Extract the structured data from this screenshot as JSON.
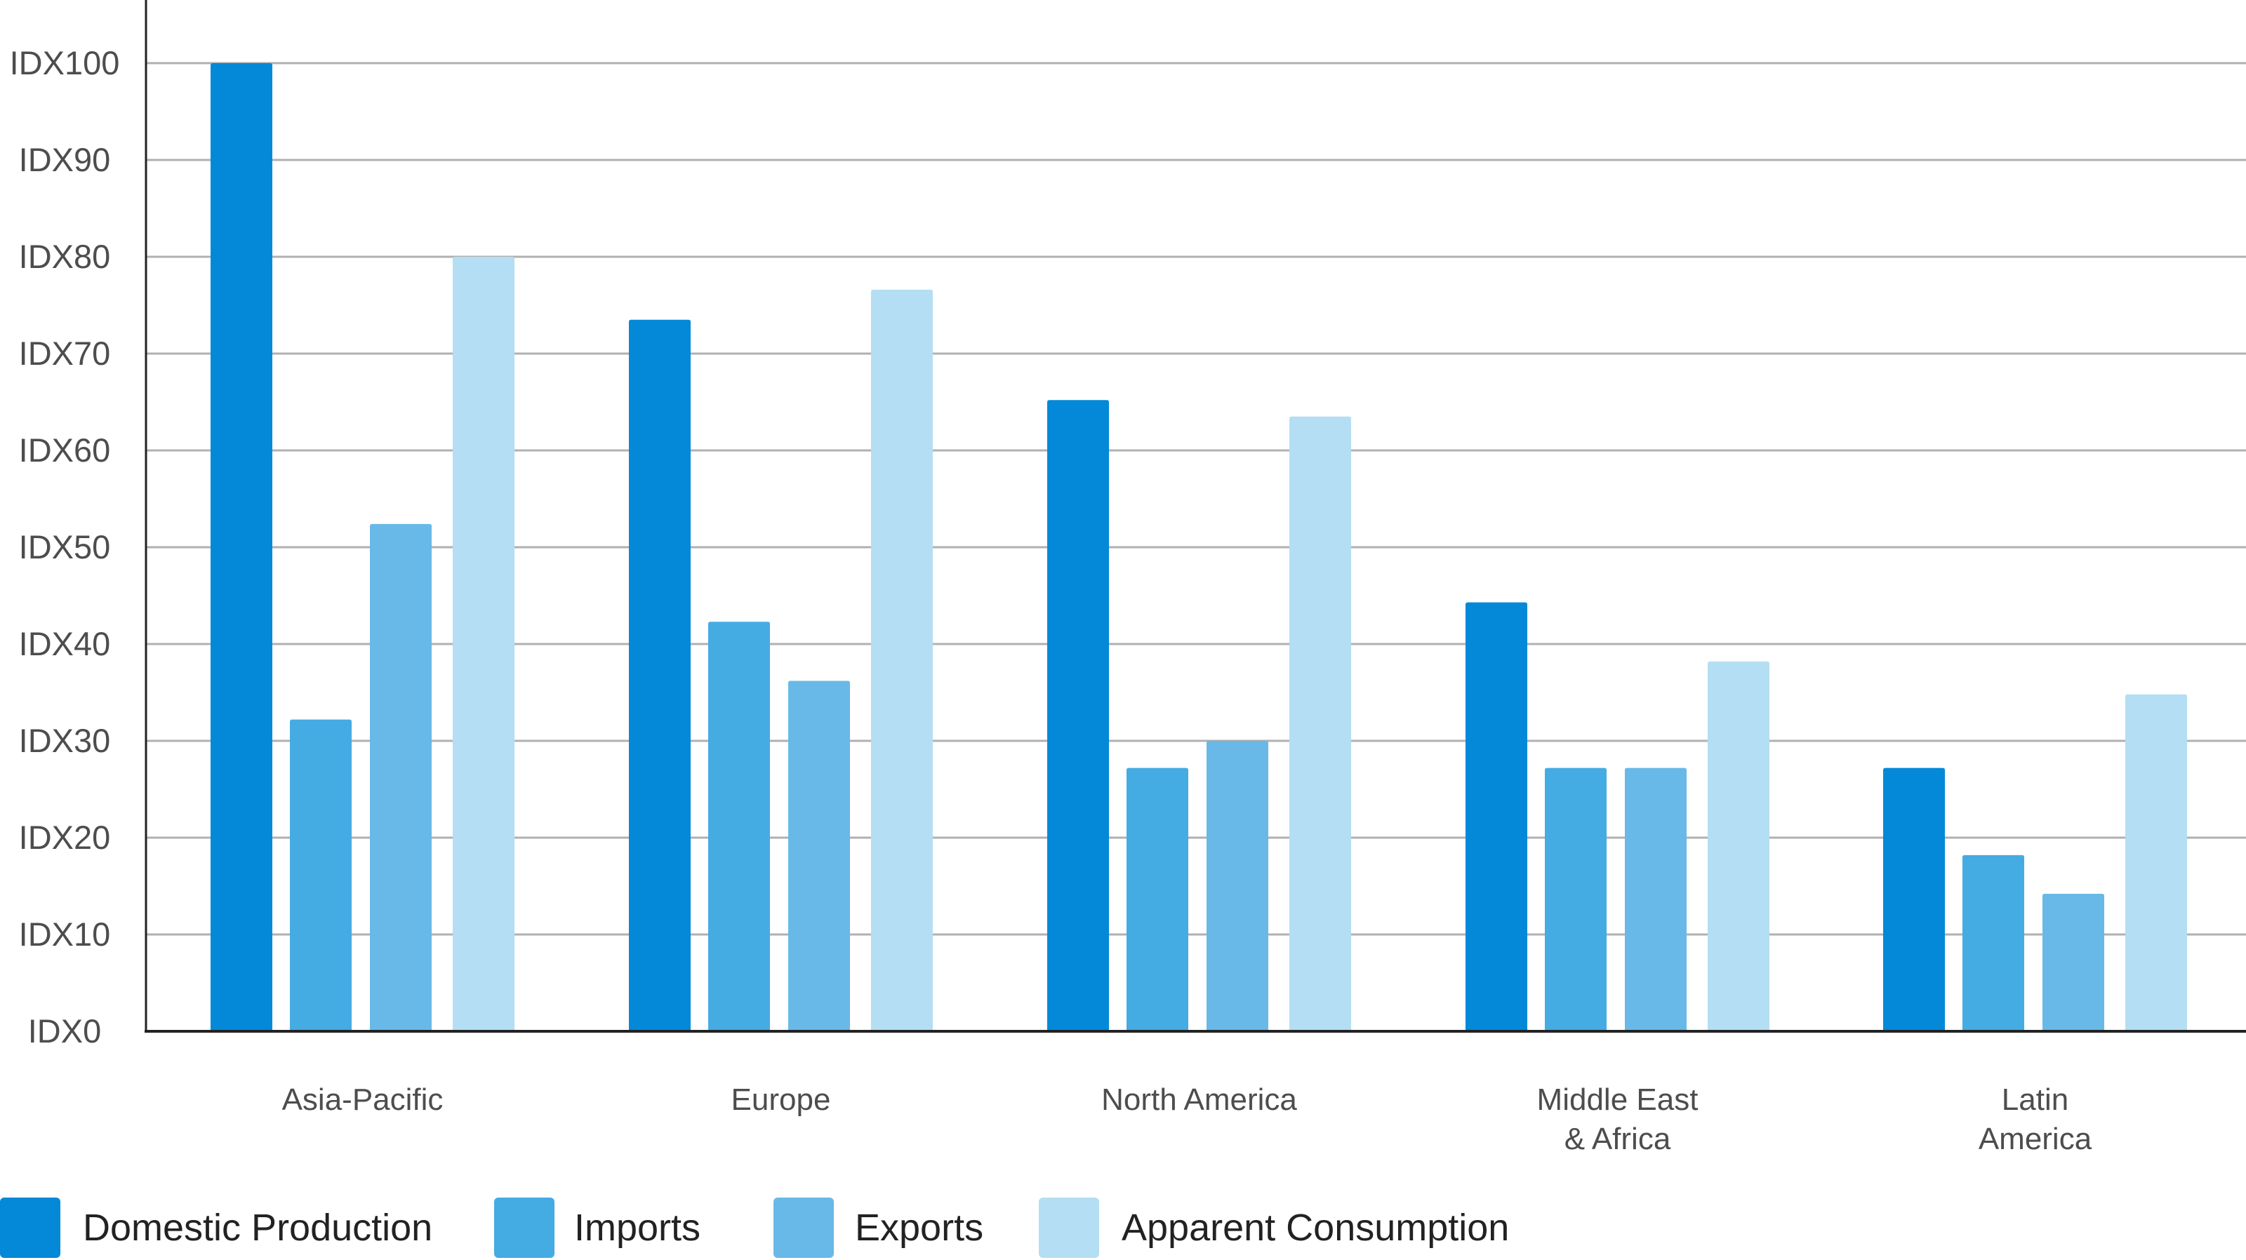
{
  "chart_data": {
    "type": "bar",
    "title": "",
    "xlabel": "",
    "ylabel": "",
    "ylim": [
      0,
      100
    ],
    "y_ticks": [
      "IDX0",
      "IDX10",
      "IDX20",
      "IDX30",
      "IDX40",
      "IDX50",
      "IDX60",
      "IDX70",
      "IDX80",
      "IDX90",
      "IDX100"
    ],
    "grid": true,
    "legend_position": "bottom-left",
    "categories": [
      [
        "Asia-Pacific"
      ],
      [
        "Europe"
      ],
      [
        "North America"
      ],
      [
        "Middle East",
        "& Africa"
      ],
      [
        "Latin",
        "America"
      ]
    ],
    "series": [
      {
        "name": "Domestic Production",
        "color": "#0389d7",
        "values": [
          100,
          73.5,
          65.2,
          44.3,
          27.2
        ]
      },
      {
        "name": "Imports",
        "color": "#45abe3",
        "values": [
          32.2,
          42.3,
          27.2,
          27.2,
          18.2
        ]
      },
      {
        "name": "Exports",
        "color": "#68b9e8",
        "values": [
          52.4,
          36.2,
          30,
          27.2,
          14.2
        ]
      },
      {
        "name": "Apparent Consumption",
        "color": "#b4def3",
        "values": [
          80,
          76.6,
          63.5,
          38.2,
          34.8
        ]
      }
    ],
    "colors": {
      "grid": "#b0b0b0",
      "axis": "#222222",
      "text": "#4d4d4d"
    }
  }
}
